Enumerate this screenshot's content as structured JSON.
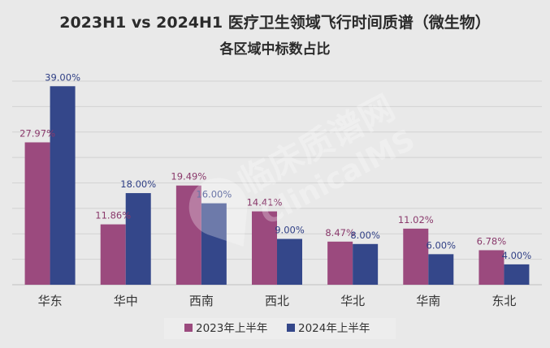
{
  "chart_data": {
    "type": "bar",
    "title": "2023H1 vs 2024H1 医疗卫生领域飞行时间质谱（微生物）",
    "subtitle": "各区域中标数占比",
    "categories": [
      "华东",
      "华中",
      "西南",
      "西北",
      "华北",
      "华南",
      "东北"
    ],
    "series": [
      {
        "name": "2023年上半年",
        "values": [
          27.97,
          11.86,
          19.49,
          14.41,
          8.47,
          11.02,
          6.78
        ],
        "labels": [
          "27.97%",
          "11.86%",
          "19.49%",
          "14.41%",
          "8.47%",
          "11.02%",
          "6.78%"
        ],
        "color": "#9b4a7e",
        "label_color": "#8a3a6c"
      },
      {
        "name": "2024年上半年",
        "values": [
          39.0,
          18.0,
          16.0,
          9.0,
          8.0,
          6.0,
          4.0
        ],
        "labels": [
          "39.00%",
          "18.00%",
          "16.00%",
          "9.00%",
          "8.00%",
          "6.00%",
          "4.00%"
        ],
        "color": "#34478a",
        "label_color": "#2f3f85"
      }
    ],
    "ylim": [
      0,
      40
    ],
    "grid": true,
    "legend": "bottom",
    "watermark": "临床质谱网 ClinicalMS"
  }
}
